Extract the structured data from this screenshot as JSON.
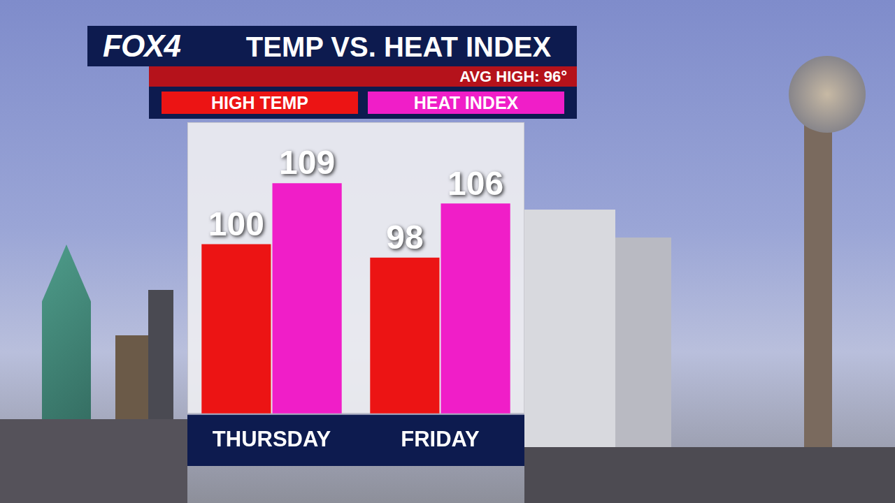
{
  "logo": "FOX4",
  "chart_data": {
    "type": "bar",
    "title": "TEMP VS. HEAT INDEX",
    "annotations": [
      "AVG HIGH: 96°"
    ],
    "categories": [
      "THURSDAY",
      "FRIDAY"
    ],
    "series": [
      {
        "name": "HIGH TEMP",
        "color": "#ec1414",
        "values": [
          100,
          98
        ]
      },
      {
        "name": "HEAT INDEX",
        "color": "#f01ec8",
        "values": [
          109,
          106
        ]
      }
    ],
    "ylim": [
      75,
      118
    ],
    "grid": false,
    "legend": "top",
    "data_labels": true,
    "tick_labels": "x"
  }
}
